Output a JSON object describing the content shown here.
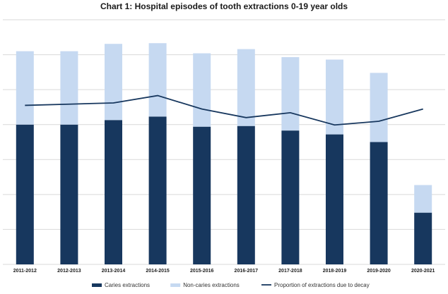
{
  "chart_data": {
    "type": "bar",
    "title": "Chart 1: Hospital episodes of tooth extractions 0-19 year olds",
    "categories": [
      "2011-2012",
      "2012-2013",
      "2013-2014",
      "2014-2015",
      "2015-2016",
      "2016-2017",
      "2017-2018",
      "2018-2019",
      "2019-2020",
      "2020-2021"
    ],
    "stacked": true,
    "series": [
      {
        "name": "Caries extractions",
        "kind": "bar",
        "color": "#17375e",
        "values": [
          40000,
          40000,
          41300,
          42300,
          39400,
          39600,
          38300,
          37200,
          35000,
          14800
        ]
      },
      {
        "name": "Non-caries extractions",
        "kind": "bar",
        "color": "#c6d9f1",
        "values": [
          21000,
          21000,
          21800,
          21000,
          21000,
          22000,
          21000,
          21400,
          19800,
          7900
        ]
      },
      {
        "name": "Proportion of extractions due to decay",
        "kind": "line",
        "color": "#17375e",
        "values": [
          0.65,
          0.655,
          0.66,
          0.69,
          0.635,
          0.6,
          0.62,
          0.57,
          0.585,
          0.635
        ]
      }
    ],
    "ylim": [
      0,
      70000
    ],
    "y2lim": [
      0,
      1
    ],
    "grid": true,
    "legend": "bottom"
  }
}
